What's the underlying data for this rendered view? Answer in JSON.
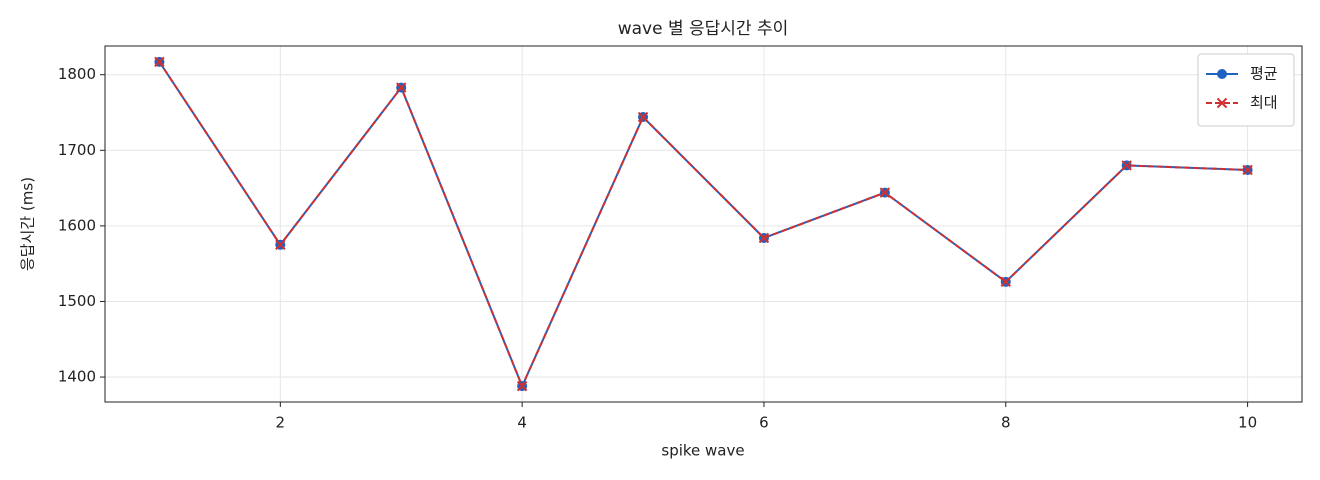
{
  "chart_data": {
    "type": "line",
    "title": "wave 별 응답시간 추이",
    "x_label": "spike wave",
    "y_label": "응답시간 (ms)",
    "x": [
      1,
      2,
      3,
      4,
      5,
      6,
      7,
      8,
      9,
      10
    ],
    "series": [
      {
        "name": "평균",
        "color": "#1f62c0",
        "linestyle": "solid",
        "marker": "circle",
        "values": [
          1817,
          1575,
          1783,
          1388,
          1744,
          1584,
          1644,
          1526,
          1680,
          1674
        ]
      },
      {
        "name": "최대",
        "color": "#d03030",
        "linestyle": "dashed",
        "marker": "x",
        "values": [
          1817,
          1575,
          1783,
          1388,
          1744,
          1584,
          1644,
          1526,
          1680,
          1674
        ]
      }
    ],
    "xlim": [
      0.55,
      10.45
    ],
    "xticks": [
      2,
      4,
      6,
      8,
      10
    ],
    "ylim": [
      1367,
      1838
    ],
    "yticks": [
      1400,
      1500,
      1600,
      1700,
      1800
    ],
    "grid": true,
    "legend": "upper right"
  }
}
